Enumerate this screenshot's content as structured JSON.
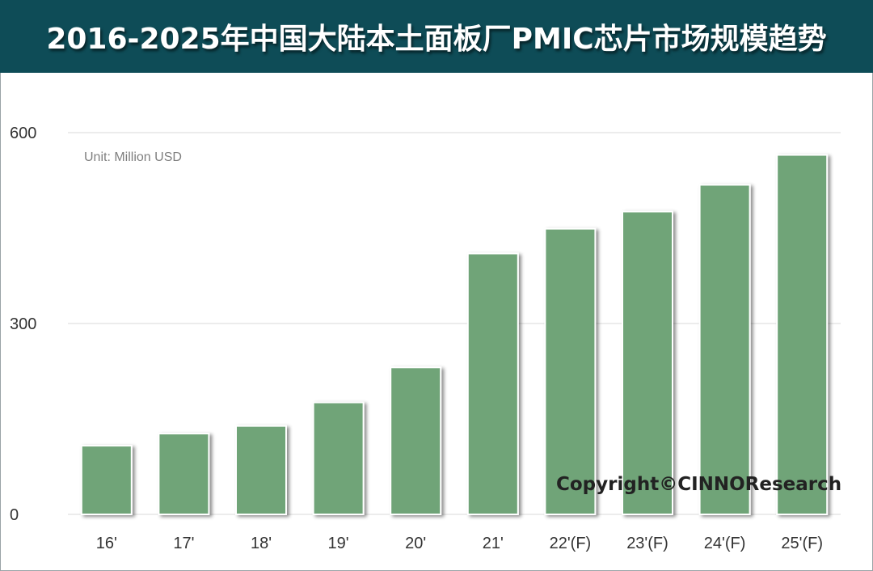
{
  "title": "2016-2025年中国大陆本土面板厂PMIC芯片市场规模趋势",
  "unit_note": "Unit: Million USD",
  "copyright": "Copyright©CINNOResearch",
  "colors": {
    "header_bg": "#0e4c57",
    "bar": "#70a478",
    "grid": "#d9d9d9"
  },
  "chart_data": {
    "type": "bar",
    "title": "2016-2025年中国大陆本土面板厂PMIC芯片市场规模趋势",
    "xlabel": "",
    "ylabel": "",
    "ylim": [
      0,
      600
    ],
    "yticks": [
      0,
      300,
      600
    ],
    "grid": true,
    "legend": "none",
    "categories": [
      "16'",
      "17'",
      "18'",
      "19'",
      "20'",
      "21'",
      "22'(F)",
      "23'(F)",
      "24'(F)",
      "25'(F)"
    ],
    "values": [
      108,
      127,
      139,
      176,
      231,
      410,
      449,
      476,
      518,
      565
    ]
  }
}
